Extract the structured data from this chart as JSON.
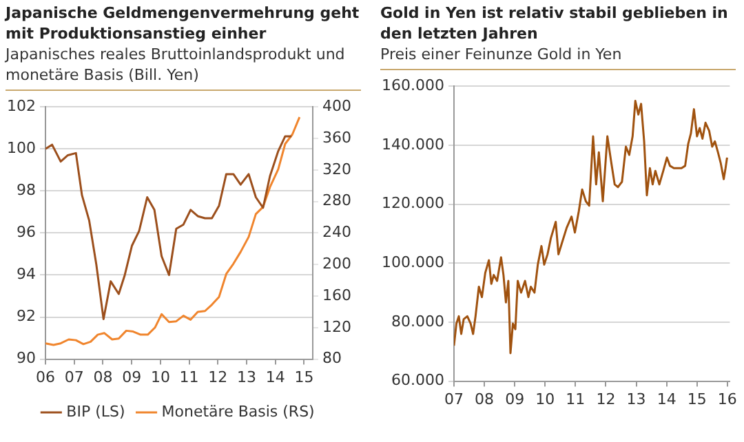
{
  "chart_data": [
    {
      "type": "line",
      "title": "Japanische Geldmengenvermehrung geht mit Produktionsanstieg einher",
      "subtitle": "Japanisches reales Bruttoinlandsprodukt und monetäre Basis (Bill. Yen)",
      "xlim": [
        2006,
        2015.3
      ],
      "xticks": [
        {
          "value": 2006,
          "label": "06"
        },
        {
          "value": 2007,
          "label": "07"
        },
        {
          "value": 2008,
          "label": "08"
        },
        {
          "value": 2009,
          "label": "09"
        },
        {
          "value": 2010,
          "label": "10"
        },
        {
          "value": 2011,
          "label": "11"
        },
        {
          "value": 2012,
          "label": "12"
        },
        {
          "value": 2013,
          "label": "13"
        },
        {
          "value": 2014,
          "label": "14"
        },
        {
          "value": 2015,
          "label": "15"
        }
      ],
      "ylim": [
        90,
        102
      ],
      "yticks": [
        90,
        92,
        94,
        96,
        98,
        100,
        102
      ],
      "y2lim": [
        80,
        400
      ],
      "y2ticks": [
        80,
        120,
        160,
        200,
        240,
        280,
        320,
        360,
        400
      ],
      "grid": "y",
      "legend": "bottom",
      "series": [
        {
          "name": "BIP (LS)",
          "color": "#9c4f1c",
          "x": [
            2006.0,
            2006.23,
            2006.53,
            2006.78,
            2007.06,
            2007.27,
            2007.52,
            2007.77,
            2008.02,
            2008.27,
            2008.55,
            2008.76,
            2009.01,
            2009.26,
            2009.54,
            2009.79,
            2010.04,
            2010.3,
            2010.55,
            2010.8,
            2011.05,
            2011.3,
            2011.55,
            2011.79,
            2012.04,
            2012.29,
            2012.54,
            2012.79,
            2013.07,
            2013.32,
            2013.57,
            2013.81,
            2014.1,
            2014.34,
            2014.56
          ],
          "values": [
            100.0,
            100.2,
            99.4,
            99.7,
            99.8,
            97.8,
            96.6,
            94.5,
            91.9,
            93.7,
            93.1,
            94.0,
            95.4,
            96.1,
            97.7,
            97.1,
            94.9,
            94.0,
            96.2,
            96.4,
            97.1,
            96.8,
            96.7,
            96.7,
            97.3,
            98.8,
            98.8,
            98.3,
            98.8,
            97.7,
            97.2,
            98.7,
            99.9,
            100.6,
            100.6
          ]
        },
        {
          "name": "Monetäre Basis (RS)",
          "color": "#f0852d",
          "axis": "y2",
          "x": [
            2006.0,
            2006.28,
            2006.53,
            2006.81,
            2007.06,
            2007.32,
            2007.57,
            2007.82,
            2008.05,
            2008.32,
            2008.55,
            2008.81,
            2009.05,
            2009.31,
            2009.56,
            2009.81,
            2010.04,
            2010.3,
            2010.55,
            2010.8,
            2011.05,
            2011.3,
            2011.55,
            2011.79,
            2012.04,
            2012.29,
            2012.54,
            2012.79,
            2013.07,
            2013.32,
            2013.57,
            2013.81,
            2014.1,
            2014.34,
            2014.59,
            2014.84
          ],
          "values": [
            100,
            98,
            100,
            105,
            104,
            99,
            102,
            111,
            113,
            105,
            106,
            116,
            115,
            111,
            111,
            120,
            137,
            127,
            128,
            135,
            130,
            140,
            141,
            149,
            159,
            188,
            201,
            216,
            235,
            264,
            273,
            298,
            321,
            353,
            365,
            387
          ]
        }
      ]
    },
    {
      "type": "line",
      "title": "Gold in Yen ist relativ stabil geblieben in den letzten Jahren",
      "subtitle": "Preis einer Feinunze Gold in Yen",
      "xlim": [
        2007,
        2016.08
      ],
      "xticks": [
        {
          "value": 2007,
          "label": "07"
        },
        {
          "value": 2008,
          "label": "08"
        },
        {
          "value": 2009,
          "label": "09"
        },
        {
          "value": 2010,
          "label": "10"
        },
        {
          "value": 2011,
          "label": "11"
        },
        {
          "value": 2012,
          "label": "12"
        },
        {
          "value": 2013,
          "label": "13"
        },
        {
          "value": 2014,
          "label": "14"
        },
        {
          "value": 2015,
          "label": "15"
        },
        {
          "value": 2016,
          "label": "16"
        }
      ],
      "ylim": [
        60000,
        160000
      ],
      "yticks": [
        {
          "value": 60000,
          "label": "60.000"
        },
        {
          "value": 80000,
          "label": "80.000"
        },
        {
          "value": 100000,
          "label": "100.000"
        },
        {
          "value": 120000,
          "label": "120.000"
        },
        {
          "value": 140000,
          "label": "140.000"
        },
        {
          "value": 160000,
          "label": "160.000"
        }
      ],
      "grid": "y",
      "series": [
        {
          "color": "#a0520f",
          "x": [
            2007.0,
            2007.08,
            2007.16,
            2007.24,
            2007.32,
            2007.44,
            2007.55,
            2007.63,
            2007.71,
            2007.82,
            2007.92,
            2008.03,
            2008.15,
            2008.23,
            2008.31,
            2008.42,
            2008.55,
            2008.63,
            2008.71,
            2008.79,
            2008.86,
            2008.94,
            2009.02,
            2009.1,
            2009.21,
            2009.34,
            2009.45,
            2009.53,
            2009.65,
            2009.76,
            2009.88,
            2009.97,
            2010.08,
            2010.19,
            2010.35,
            2010.44,
            2010.55,
            2010.71,
            2010.87,
            2010.98,
            2011.11,
            2011.22,
            2011.34,
            2011.45,
            2011.58,
            2011.68,
            2011.77,
            2011.9,
            2012.05,
            2012.18,
            2012.29,
            2012.4,
            2012.53,
            2012.66,
            2012.77,
            2012.88,
            2012.97,
            2013.07,
            2013.16,
            2013.26,
            2013.35,
            2013.45,
            2013.54,
            2013.63,
            2013.76,
            2013.89,
            2014.01,
            2014.11,
            2014.24,
            2014.36,
            2014.49,
            2014.61,
            2014.71,
            2014.8,
            2014.9,
            2015.0,
            2015.09,
            2015.18,
            2015.28,
            2015.4,
            2015.5,
            2015.59,
            2015.69,
            2015.78,
            2015.88,
            2015.94,
            2015.99
          ],
          "values": [
            72000,
            79500,
            82000,
            76000,
            81000,
            82000,
            79500,
            76000,
            82000,
            92000,
            88500,
            96700,
            101000,
            93000,
            96000,
            94000,
            102000,
            96000,
            86700,
            94000,
            69500,
            79500,
            77600,
            94000,
            90000,
            94000,
            88500,
            92000,
            90000,
            99500,
            105800,
            99500,
            103000,
            108500,
            114000,
            103000,
            106700,
            112000,
            115800,
            110400,
            117600,
            125000,
            121000,
            119500,
            143000,
            126700,
            137600,
            121000,
            143000,
            134000,
            126700,
            125800,
            127600,
            139500,
            136700,
            143000,
            155000,
            150400,
            154000,
            141300,
            123000,
            132200,
            126700,
            131300,
            126700,
            131300,
            135800,
            133000,
            132200,
            132200,
            132200,
            133000,
            140400,
            144000,
            152200,
            143000,
            145800,
            142200,
            147600,
            144900,
            139500,
            141300,
            137600,
            134000,
            128500,
            132200,
            135800
          ]
        }
      ]
    }
  ]
}
